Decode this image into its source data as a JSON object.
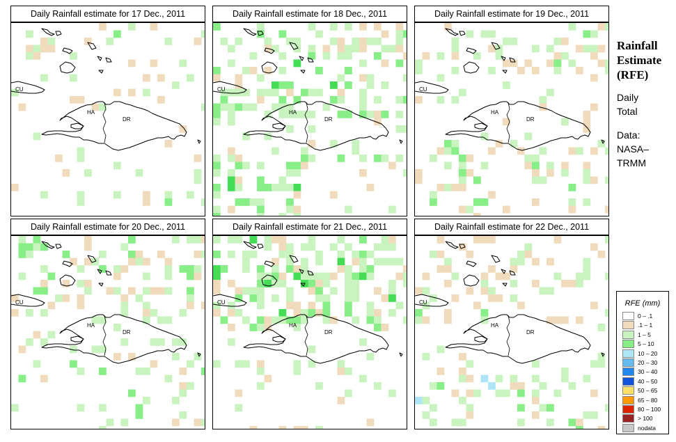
{
  "colors": {
    "light_brown": "#f0dcbc",
    "light_green": "#c9f4c0",
    "medium_green": "#88ee88",
    "bright_green": "#44dd55",
    "light_cyan": "#aee6f7"
  },
  "panels": [
    {
      "title": "Daily Rainfall estimate for  17 Dec., 2011",
      "labels": {
        "cu": "CU",
        "ha": "HA",
        "dr": "DR"
      }
    },
    {
      "title": "Daily Rainfall estimate for  18 Dec., 2011",
      "labels": {
        "cu": "CU",
        "ha": "HA",
        "dr": "DR"
      }
    },
    {
      "title": "Daily Rainfall estimate for  19 Dec., 2011",
      "labels": {
        "cu": "CU",
        "ha": "HA",
        "dr": "DR"
      }
    },
    {
      "title": "Daily Rainfall estimate for  20 Dec., 2011",
      "labels": {
        "cu": "CU",
        "ha": "HA",
        "dr": "DR"
      }
    },
    {
      "title": "Daily Rainfall estimate for  21 Dec., 2011",
      "labels": {
        "cu": "CU",
        "ha": "HA",
        "dr": "DR"
      }
    },
    {
      "title": "Daily Rainfall estimate for  22 Dec., 2011",
      "labels": {
        "cu": "CU",
        "ha": "HA",
        "dr": "DR"
      }
    }
  ],
  "side": {
    "title": [
      "Rainfall",
      "Estimate",
      "(RFE)"
    ],
    "lines": [
      "Daily",
      "Total",
      "",
      "Data:",
      "NASA–",
      "TRMM"
    ]
  },
  "legend": {
    "title": "RFE (mm)",
    "items": [
      {
        "label": "0 – .1",
        "color": "#ffffff"
      },
      {
        "label": ".1 – 1",
        "color": "#f0dcbc"
      },
      {
        "label": "1 – 5",
        "color": "#c9f4c0"
      },
      {
        "label": "5 – 10",
        "color": "#88ee88"
      },
      {
        "label": "10 – 20",
        "color": "#aee6f7"
      },
      {
        "label": "20 – 30",
        "color": "#66bbf0"
      },
      {
        "label": "30 – 40",
        "color": "#2288ee"
      },
      {
        "label": "40 – 50",
        "color": "#1155dd"
      },
      {
        "label": "50 – 65",
        "color": "#ffe066"
      },
      {
        "label": "65 – 80",
        "color": "#ff9900"
      },
      {
        "label": "80 – 100",
        "color": "#dd2200"
      },
      {
        "label": "> 100",
        "color": "#992222"
      },
      {
        "label": "nodata",
        "color": "#c8c8c8"
      }
    ]
  }
}
